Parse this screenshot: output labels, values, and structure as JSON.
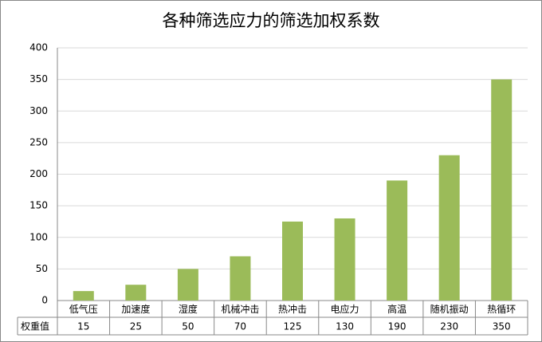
{
  "chart_data": {
    "type": "bar",
    "title": "各种筛选应力的筛选加权系数",
    "categories": [
      "低气压",
      "加速度",
      "湿度",
      "机械冲击",
      "热冲击",
      "电应力",
      "高温",
      "随机振动",
      "热循环"
    ],
    "series": [
      {
        "name": "权重值",
        "color": "#9bbb59",
        "values": [
          15,
          25,
          50,
          70,
          125,
          130,
          190,
          230,
          350
        ]
      }
    ],
    "ylim": [
      0,
      400
    ],
    "yticks": [
      0,
      50,
      100,
      150,
      200,
      250,
      300,
      350,
      400
    ],
    "grid": true
  }
}
